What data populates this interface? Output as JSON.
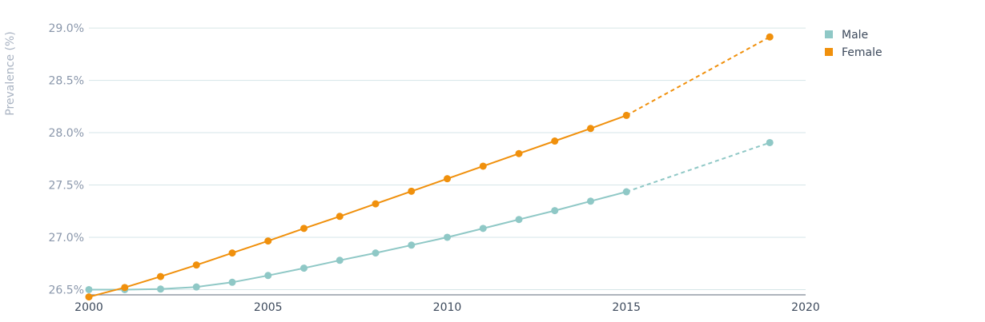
{
  "chart_data": {
    "type": "line",
    "ylabel": "Prevalence (%)",
    "xlabel": "",
    "xlim": [
      2000,
      2020
    ],
    "ylim": [
      26.45,
      29.1
    ],
    "y_ticks": [
      26.5,
      27.0,
      27.5,
      28.0,
      28.5,
      29.0
    ],
    "y_tick_labels": [
      "26.5%",
      "27.0%",
      "27.5%",
      "28.0%",
      "28.5%",
      "29.0%"
    ],
    "x_ticks": [
      2000,
      2005,
      2010,
      2015,
      2020
    ],
    "x_tick_labels": [
      "2000",
      "2005",
      "2010",
      "2015",
      "2020"
    ],
    "grid": true,
    "legend_position": "top-right",
    "series": [
      {
        "name": "Male",
        "color": "#8fc8c6",
        "x": [
          2000,
          2001,
          2002,
          2003,
          2004,
          2005,
          2006,
          2007,
          2008,
          2009,
          2010,
          2011,
          2012,
          2013,
          2014,
          2015,
          2019
        ],
        "y": [
          26.5,
          26.5,
          26.505,
          26.525,
          26.57,
          26.635,
          26.705,
          26.78,
          26.85,
          26.925,
          27.0,
          27.085,
          27.17,
          27.255,
          27.345,
          27.435,
          27.905
        ],
        "projected_from_x": 2015
      },
      {
        "name": "Female",
        "color": "#f0900c",
        "x": [
          2000,
          2001,
          2002,
          2003,
          2004,
          2005,
          2006,
          2007,
          2008,
          2009,
          2010,
          2011,
          2012,
          2013,
          2014,
          2015,
          2019
        ],
        "y": [
          26.43,
          26.52,
          26.625,
          26.735,
          26.85,
          26.965,
          27.085,
          27.2,
          27.32,
          27.44,
          27.56,
          27.68,
          27.8,
          27.92,
          28.04,
          28.165,
          28.915
        ],
        "projected_from_x": 2015
      }
    ]
  }
}
